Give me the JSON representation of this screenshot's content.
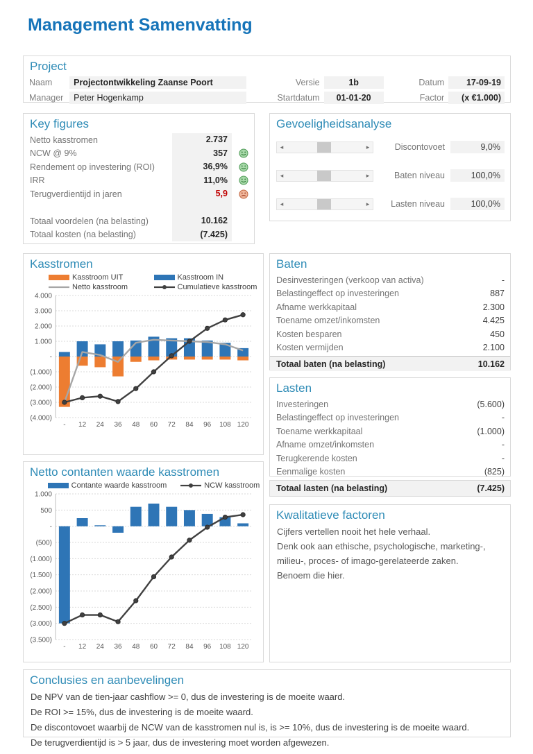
{
  "page": {
    "title": "Management Samenvatting"
  },
  "colors": {
    "title_blue": "#1674b9",
    "heading_blue": "#2e8bb6",
    "bar_orange": "#ED7D31",
    "bar_blue": "#2E75B6",
    "line_gray": "#A6A6A6",
    "line_dark": "#404040",
    "negative_red": "#C00000",
    "cell_shade": "#F2F2F2"
  },
  "project": {
    "heading": "Project",
    "rows": [
      {
        "label1": "Naam",
        "value1": "Projectontwikkeling Zaanse Poort",
        "label2": "Versie",
        "value2": "1b",
        "label3": "Datum",
        "value3": "17-09-19"
      },
      {
        "label1": "Manager",
        "value1": "Peter Hogenkamp",
        "label2": "Startdatum",
        "value2": "01-01-20",
        "label3": "Factor",
        "value3": "(x €1.000)"
      }
    ]
  },
  "key_figures": {
    "heading": "Key figures",
    "rows": [
      {
        "label": "Netto kasstromen",
        "value": "2.737",
        "icon": "none"
      },
      {
        "label": "NCW @ 9%",
        "value": "357",
        "icon": "smile"
      },
      {
        "label": "Rendement op investering (ROI)",
        "value": "36,9%",
        "icon": "smile"
      },
      {
        "label": "IRR",
        "value": "11,0%",
        "icon": "smile"
      },
      {
        "label": "Terugverdientijd in jaren",
        "value": "5,9",
        "icon": "frown",
        "negative": true
      },
      {
        "label": "",
        "value": "",
        "icon": "none",
        "spacer": true
      },
      {
        "label": "Totaal voordelen (na belasting)",
        "value": "10.162",
        "icon": "none"
      },
      {
        "label": "Totaal kosten (na belasting)",
        "value": "(7.425)",
        "icon": "none"
      }
    ]
  },
  "sensitivity": {
    "heading": "Gevoeligheidsanalyse",
    "rows": [
      {
        "label": "Discontovoet",
        "value": "9,0%"
      },
      {
        "label": "Baten niveau",
        "value": "100,0%"
      },
      {
        "label": "Lasten niveau",
        "value": "100,0%"
      }
    ]
  },
  "baten": {
    "heading": "Baten",
    "rows": [
      {
        "label": "Desinvesteringen (verkoop van activa)",
        "value": "-"
      },
      {
        "label": "Belastingeffect op investeringen",
        "value": "887"
      },
      {
        "label": "Afname werkkapitaal",
        "value": "2.300"
      },
      {
        "label": "Toename omzet/inkomsten",
        "value": "4.425"
      },
      {
        "label": "Kosten besparen",
        "value": "450"
      },
      {
        "label": "Kosten vermijden",
        "value": "2.100"
      }
    ],
    "total": {
      "label": "Totaal baten (na belasting)",
      "value": "10.162"
    }
  },
  "lasten": {
    "heading": "Lasten",
    "rows": [
      {
        "label": "Investeringen",
        "value": "(5.600)"
      },
      {
        "label": "Belastingeffect op investeringen",
        "value": "-"
      },
      {
        "label": "Toename werkkapitaal",
        "value": "(1.000)"
      },
      {
        "label": "Afname omzet/inkomsten",
        "value": "-"
      },
      {
        "label": "Terugkerende kosten",
        "value": "-"
      },
      {
        "label": "Eenmalige kosten",
        "value": "(825)"
      }
    ],
    "total": {
      "label": "Totaal lasten (na belasting)",
      "value": "(7.425)"
    }
  },
  "qualitative": {
    "heading": "Kwalitatieve factoren",
    "lines": [
      "Cijfers vertellen nooit het hele verhaal.",
      "Denk ook aan ethische, psychologische, marketing-,",
      "milieu-, proces- of imago-gerelateerde zaken.",
      "Benoem die hier."
    ]
  },
  "conclusions": {
    "heading": "Conclusies en aanbevelingen",
    "lines": [
      "De NPV van de tien-jaar cashflow >= 0, dus de investering is de moeite waard.",
      "De ROI >= 15%, dus de investering is de moeite waard.",
      "De discontovoet waarbij de NCW van de kasstromen nul is, is >= 10%, dus de investering is de moeite waard.",
      "De terugverdientijd is > 5 jaar, dus de investering moet worden afgewezen."
    ]
  },
  "chart_data": [
    {
      "type": "bar+line",
      "title": "Kasstromen",
      "categories": [
        "-",
        "12",
        "24",
        "36",
        "48",
        "60",
        "72",
        "84",
        "96",
        "108",
        "120"
      ],
      "series": [
        {
          "name": "Kasstroom UIT",
          "type": "bar",
          "color": "#ED7D31",
          "values": [
            -3300,
            -600,
            -700,
            -1300,
            -350,
            -250,
            -200,
            -200,
            -200,
            -200,
            -250
          ]
        },
        {
          "name": "Kasstroom IN",
          "type": "bar",
          "color": "#2E75B6",
          "values": [
            300,
            1000,
            800,
            1000,
            1050,
            1300,
            1200,
            1200,
            1050,
            900,
            550
          ]
        },
        {
          "name": "Netto kasstroom",
          "type": "line",
          "color": "#A6A6A6",
          "markers": false,
          "values": [
            -3000,
            300,
            100,
            -350,
            900,
            1100,
            1050,
            1000,
            950,
            800,
            400
          ]
        },
        {
          "name": "Cumulatieve kasstroom",
          "type": "line",
          "color": "#404040",
          "markers": true,
          "values": [
            -3000,
            -2700,
            -2600,
            -2950,
            -2100,
            -1000,
            50,
            1000,
            1850,
            2400,
            2737
          ]
        }
      ],
      "ylim": [
        -4000,
        4000
      ],
      "yticks": [
        {
          "v": 4000,
          "l": "4.000"
        },
        {
          "v": 3000,
          "l": "3.000"
        },
        {
          "v": 2000,
          "l": "2.000"
        },
        {
          "v": 1000,
          "l": "1.000"
        },
        {
          "v": 0,
          "l": "-"
        },
        {
          "v": -1000,
          "l": "(1.000)"
        },
        {
          "v": -2000,
          "l": "(2.000)"
        },
        {
          "v": -3000,
          "l": "(3.000)"
        },
        {
          "v": -4000,
          "l": "(4.000)"
        }
      ],
      "grid": true,
      "legend_position": "top"
    },
    {
      "type": "bar+line",
      "title": "Netto contanten waarde kasstromen",
      "categories": [
        "-",
        "12",
        "24",
        "36",
        "48",
        "60",
        "72",
        "84",
        "96",
        "108",
        "120"
      ],
      "series": [
        {
          "name": "Contante waarde kasstroom",
          "type": "bar",
          "color": "#2E75B6",
          "values": [
            -3000,
            250,
            30,
            -200,
            600,
            700,
            600,
            500,
            380,
            280,
            90
          ]
        },
        {
          "name": "NCW kasstroom",
          "type": "line",
          "color": "#404040",
          "markers": true,
          "values": [
            -3000,
            -2740,
            -2740,
            -2950,
            -2300,
            -1560,
            -950,
            -430,
            -30,
            280,
            357
          ]
        }
      ],
      "ylim": [
        -3500,
        1000
      ],
      "yticks": [
        {
          "v": 1000,
          "l": "1.000"
        },
        {
          "v": 500,
          "l": "500"
        },
        {
          "v": 0,
          "l": "-"
        },
        {
          "v": -500,
          "l": "(500)"
        },
        {
          "v": -1000,
          "l": "(1.000)"
        },
        {
          "v": -1500,
          "l": "(1.500)"
        },
        {
          "v": -2000,
          "l": "(2.000)"
        },
        {
          "v": -2500,
          "l": "(2.500)"
        },
        {
          "v": -3000,
          "l": "(3.000)"
        },
        {
          "v": -3500,
          "l": "(3.500)"
        }
      ],
      "grid": true,
      "legend_position": "top"
    }
  ]
}
